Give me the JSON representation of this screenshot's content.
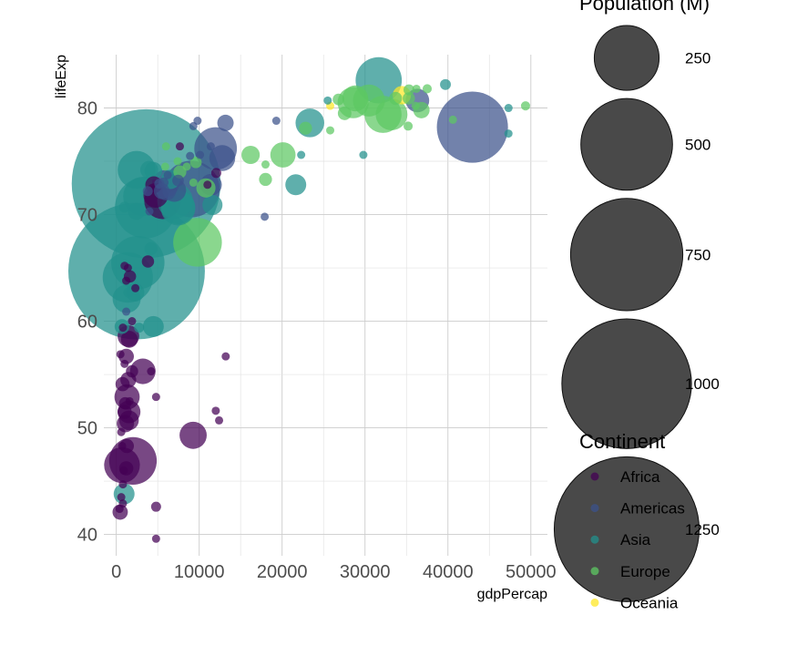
{
  "chart_data": {
    "type": "scatter",
    "xlabel": "gdpPercap",
    "ylabel": "lifeExp",
    "xlim": [
      -1500,
      52000
    ],
    "ylim": [
      38,
      85
    ],
    "x_ticks": [
      0,
      10000,
      20000,
      30000,
      40000,
      50000
    ],
    "y_ticks": [
      40,
      50,
      60,
      70,
      80
    ],
    "grid": true,
    "size_legend": {
      "title": "Population (M)",
      "entries": [
        250,
        500,
        750,
        1000,
        1250
      ]
    },
    "color_legend": {
      "title": "Continent",
      "entries": [
        {
          "name": "Africa",
          "color": "#440154"
        },
        {
          "name": "Americas",
          "color": "#3b528b"
        },
        {
          "name": "Asia",
          "color": "#21908c"
        },
        {
          "name": "Europe",
          "color": "#5dc863"
        },
        {
          "name": "Oceania",
          "color": "#fde725"
        }
      ]
    },
    "points": [
      {
        "x": 3600,
        "y": 72.9,
        "pop": 1318,
        "continent": "Asia"
      },
      {
        "x": 2450,
        "y": 64.7,
        "pop": 1110,
        "continent": "Asia"
      },
      {
        "x": 42950,
        "y": 78.2,
        "pop": 301,
        "continent": "Americas"
      },
      {
        "x": 3540,
        "y": 70.65,
        "pop": 224,
        "continent": "Asia"
      },
      {
        "x": 9060,
        "y": 72.4,
        "pop": 190,
        "continent": "Americas"
      },
      {
        "x": 2600,
        "y": 65.5,
        "pop": 169,
        "continent": "Asia"
      },
      {
        "x": 1390,
        "y": 64.1,
        "pop": 150,
        "continent": "Asia"
      },
      {
        "x": 2010,
        "y": 46.9,
        "pop": 135,
        "continent": "Africa"
      },
      {
        "x": 31650,
        "y": 82.6,
        "pop": 127,
        "continent": "Asia"
      },
      {
        "x": 11980,
        "y": 76.2,
        "pop": 108,
        "continent": "Americas"
      },
      {
        "x": 9800,
        "y": 67.4,
        "pop": 141,
        "continent": "Europe"
      },
      {
        "x": 3190,
        "y": 71.7,
        "pop": 91,
        "continent": "Asia"
      },
      {
        "x": 2450,
        "y": 74.2,
        "pop": 85,
        "continent": "Asia"
      },
      {
        "x": 690,
        "y": 46.5,
        "pop": 76,
        "continent": "Africa"
      },
      {
        "x": 32170,
        "y": 79.4,
        "pop": 82,
        "continent": "Europe"
      },
      {
        "x": 7092,
        "y": 71.3,
        "pop": 76,
        "continent": "Asia"
      },
      {
        "x": 5581,
        "y": 71.3,
        "pop": 80,
        "continent": "Africa"
      },
      {
        "x": 7458,
        "y": 70.6,
        "pop": 71,
        "continent": "Asia"
      },
      {
        "x": 7458,
        "y": 70.7,
        "pop": 69,
        "continent": "Asia"
      },
      {
        "x": 30470,
        "y": 80.7,
        "pop": 61,
        "continent": "Europe"
      },
      {
        "x": 33200,
        "y": 79.4,
        "pop": 60,
        "continent": "Europe"
      },
      {
        "x": 28570,
        "y": 80.5,
        "pop": 58,
        "continent": "Europe"
      },
      {
        "x": 1250,
        "y": 62.1,
        "pop": 47,
        "continent": "Asia"
      },
      {
        "x": 9270,
        "y": 49.3,
        "pop": 44,
        "continent": "Africa"
      },
      {
        "x": 28820,
        "y": 80.9,
        "pop": 40,
        "continent": "Europe"
      },
      {
        "x": 23350,
        "y": 78.6,
        "pop": 49,
        "continent": "Asia"
      },
      {
        "x": 5940,
        "y": 72.9,
        "pop": 44,
        "continent": "Americas"
      },
      {
        "x": 12780,
        "y": 75.3,
        "pop": 40,
        "continent": "Americas"
      },
      {
        "x": 3200,
        "y": 55.3,
        "pop": 39,
        "continent": "Africa"
      },
      {
        "x": 1300,
        "y": 52.9,
        "pop": 38,
        "continent": "Africa"
      },
      {
        "x": 20100,
        "y": 75.6,
        "pop": 38,
        "continent": "Europe"
      },
      {
        "x": 7000,
        "y": 72.3,
        "pop": 33,
        "continent": "Americas"
      },
      {
        "x": 36320,
        "y": 80.7,
        "pop": 33,
        "continent": "Americas"
      },
      {
        "x": 4760,
        "y": 71.8,
        "pop": 36,
        "continent": "Africa"
      },
      {
        "x": 11600,
        "y": 70.9,
        "pop": 24,
        "continent": "Asia"
      },
      {
        "x": 1540,
        "y": 51.5,
        "pop": 31,
        "continent": "Africa"
      },
      {
        "x": 1463,
        "y": 58.6,
        "pop": 28,
        "continent": "Africa"
      },
      {
        "x": 11420,
        "y": 72.8,
        "pop": 28,
        "continent": "Americas"
      },
      {
        "x": 4470,
        "y": 59.5,
        "pop": 26,
        "continent": "Asia"
      },
      {
        "x": 944,
        "y": 43.8,
        "pop": 26,
        "continent": "Asia"
      },
      {
        "x": 1530,
        "y": 50.7,
        "pop": 23,
        "continent": "Africa"
      },
      {
        "x": 34440,
        "y": 81.2,
        "pop": 20,
        "continent": "Oceania"
      },
      {
        "x": 6550,
        "y": 73.3,
        "pop": 22,
        "continent": "Asia"
      },
      {
        "x": 21650,
        "y": 72.8,
        "pop": 26,
        "continent": "Asia"
      },
      {
        "x": 2280,
        "y": 62.7,
        "pop": 20,
        "continent": "Asia"
      },
      {
        "x": 10810,
        "y": 72.5,
        "pop": 22,
        "continent": "Europe"
      },
      {
        "x": 3970,
        "y": 74.2,
        "pop": 19,
        "continent": "Asia"
      },
      {
        "x": 4470,
        "y": 74.1,
        "pop": 19,
        "continent": "Asia"
      },
      {
        "x": 6020,
        "y": 72.3,
        "pop": 25,
        "continent": "Americas"
      },
      {
        "x": 1570,
        "y": 58.3,
        "pop": 17,
        "continent": "Africa"
      },
      {
        "x": 4520,
        "y": 72.8,
        "pop": 17,
        "continent": "Africa"
      },
      {
        "x": 2430,
        "y": 70.3,
        "pop": 17,
        "continent": "Asia"
      },
      {
        "x": 36800,
        "y": 79.8,
        "pop": 16,
        "continent": "Europe"
      },
      {
        "x": 13170,
        "y": 78.6,
        "pop": 16,
        "continent": "Americas"
      },
      {
        "x": 1200,
        "y": 56.7,
        "pop": 14,
        "continent": "Africa"
      },
      {
        "x": 470,
        "y": 42.1,
        "pop": 14,
        "continent": "Africa"
      },
      {
        "x": 1100,
        "y": 50.4,
        "pop": 18,
        "continent": "Africa"
      },
      {
        "x": 5480,
        "y": 72.2,
        "pop": 15,
        "continent": "Americas"
      },
      {
        "x": 1450,
        "y": 54.5,
        "pop": 15,
        "continent": "Africa"
      },
      {
        "x": 27540,
        "y": 79.5,
        "pop": 11,
        "continent": "Europe"
      },
      {
        "x": 690,
        "y": 59.5,
        "pop": 13,
        "continent": "Asia"
      },
      {
        "x": 16200,
        "y": 75.6,
        "pop": 20,
        "continent": "Europe"
      },
      {
        "x": 18000,
        "y": 73.3,
        "pop": 10,
        "continent": "Europe"
      },
      {
        "x": 33690,
        "y": 80.9,
        "pop": 10,
        "continent": "Europe"
      },
      {
        "x": 1000,
        "y": 51.5,
        "pop": 12,
        "continent": "Africa"
      },
      {
        "x": 1650,
        "y": 64.2,
        "pop": 9,
        "continent": "Africa"
      },
      {
        "x": 7670,
        "y": 74.0,
        "pop": 10,
        "continent": "Europe"
      },
      {
        "x": 22830,
        "y": 78.1,
        "pop": 10,
        "continent": "Europe"
      },
      {
        "x": 35280,
        "y": 80.9,
        "pop": 9,
        "continent": "Europe"
      },
      {
        "x": 4170,
        "y": 66.8,
        "pop": 10,
        "continent": "Asia"
      },
      {
        "x": 1270,
        "y": 48.3,
        "pop": 12,
        "continent": "Africa"
      },
      {
        "x": 760,
        "y": 54.1,
        "pop": 12,
        "continent": "Africa"
      },
      {
        "x": 3820,
        "y": 65.6,
        "pop": 9,
        "continent": "Africa"
      },
      {
        "x": 1200,
        "y": 46.2,
        "pop": 12,
        "continent": "Africa"
      },
      {
        "x": 1070,
        "y": 52.3,
        "pop": 9,
        "continent": "Africa"
      },
      {
        "x": 3800,
        "y": 72.2,
        "pop": 6,
        "continent": "Americas"
      },
      {
        "x": 7450,
        "y": 73.2,
        "pop": 8,
        "continent": "Americas"
      },
      {
        "x": 26800,
        "y": 80.8,
        "pop": 8,
        "continent": "Europe"
      },
      {
        "x": 9600,
        "y": 74.9,
        "pop": 8,
        "continent": "Europe"
      },
      {
        "x": 1900,
        "y": 55.3,
        "pop": 9,
        "continent": "Africa"
      },
      {
        "x": 1000,
        "y": 70.7,
        "pop": 7,
        "continent": "Asia"
      },
      {
        "x": 39700,
        "y": 82.2,
        "pop": 7,
        "continent": "Asia"
      },
      {
        "x": 35300,
        "y": 81.7,
        "pop": 7,
        "continent": "Europe"
      },
      {
        "x": 1450,
        "y": 62.7,
        "pop": 6,
        "continent": "Asia"
      },
      {
        "x": 12060,
        "y": 73.9,
        "pop": 6,
        "continent": "Africa"
      },
      {
        "x": 47310,
        "y": 80.0,
        "pop": 4,
        "continent": "Asia"
      },
      {
        "x": 5700,
        "y": 73.0,
        "pop": 6,
        "continent": "Americas"
      },
      {
        "x": 5190,
        "y": 72.9,
        "pop": 6,
        "continent": "Americas"
      },
      {
        "x": 37500,
        "y": 81.8,
        "pop": 5,
        "continent": "Europe"
      },
      {
        "x": 35200,
        "y": 78.3,
        "pop": 5,
        "continent": "Europe"
      },
      {
        "x": 25800,
        "y": 80.2,
        "pop": 4,
        "continent": "Oceania"
      },
      {
        "x": 49360,
        "y": 80.2,
        "pop": 5,
        "continent": "Europe"
      },
      {
        "x": 4800,
        "y": 42.6,
        "pop": 6,
        "continent": "Africa"
      },
      {
        "x": 2750,
        "y": 59.4,
        "pop": 6,
        "continent": "Asia"
      },
      {
        "x": 13200,
        "y": 56.7,
        "pop": 2,
        "continent": "Africa"
      },
      {
        "x": 12400,
        "y": 50.7,
        "pop": 2,
        "continent": "Africa"
      },
      {
        "x": 12000,
        "y": 51.6,
        "pop": 2,
        "continent": "Africa"
      },
      {
        "x": 4200,
        "y": 55.3,
        "pop": 3,
        "continent": "Africa"
      },
      {
        "x": 4800,
        "y": 52.9,
        "pop": 4,
        "continent": "Africa"
      },
      {
        "x": 4800,
        "y": 39.6,
        "pop": 2,
        "continent": "Africa"
      },
      {
        "x": 400,
        "y": 42.4,
        "pop": 4,
        "continent": "Africa"
      },
      {
        "x": 600,
        "y": 43.5,
        "pop": 4,
        "continent": "Africa"
      },
      {
        "x": 800,
        "y": 44.7,
        "pop": 3,
        "continent": "Africa"
      },
      {
        "x": 900,
        "y": 46.0,
        "pop": 3,
        "continent": "Africa"
      },
      {
        "x": 700,
        "y": 48.3,
        "pop": 2,
        "continent": "Africa"
      },
      {
        "x": 600,
        "y": 49.6,
        "pop": 3,
        "continent": "Africa"
      },
      {
        "x": 1600,
        "y": 52.5,
        "pop": 4,
        "continent": "Africa"
      },
      {
        "x": 500,
        "y": 56.9,
        "pop": 4,
        "continent": "Africa"
      },
      {
        "x": 1000,
        "y": 56.0,
        "pop": 2,
        "continent": "Africa"
      },
      {
        "x": 1900,
        "y": 60.0,
        "pop": 2,
        "continent": "Africa"
      },
      {
        "x": 800,
        "y": 59.4,
        "pop": 2,
        "continent": "Africa"
      },
      {
        "x": 1000,
        "y": 65.2,
        "pop": 2,
        "continent": "Africa"
      },
      {
        "x": 1200,
        "y": 63.8,
        "pop": 2,
        "continent": "Africa"
      },
      {
        "x": 2300,
        "y": 63.1,
        "pop": 2,
        "continent": "Africa"
      },
      {
        "x": 7670,
        "y": 76.4,
        "pop": 2,
        "continent": "Africa"
      },
      {
        "x": 11000,
        "y": 72.8,
        "pop": 2,
        "continent": "Africa"
      },
      {
        "x": 17900,
        "y": 69.8,
        "pop": 1,
        "continent": "Americas"
      },
      {
        "x": 19300,
        "y": 78.8,
        "pop": 1,
        "continent": "Americas"
      },
      {
        "x": 9300,
        "y": 78.3,
        "pop": 4,
        "continent": "Americas"
      },
      {
        "x": 9800,
        "y": 78.8,
        "pop": 2,
        "continent": "Americas"
      },
      {
        "x": 10100,
        "y": 75.6,
        "pop": 2,
        "continent": "Americas"
      },
      {
        "x": 11400,
        "y": 76.4,
        "pop": 2,
        "continent": "Americas"
      },
      {
        "x": 4000,
        "y": 70.3,
        "pop": 3,
        "continent": "Americas"
      },
      {
        "x": 6200,
        "y": 73.7,
        "pop": 3,
        "continent": "Americas"
      },
      {
        "x": 8900,
        "y": 75.5,
        "pop": 3,
        "continent": "Americas"
      },
      {
        "x": 1200,
        "y": 60.9,
        "pop": 1,
        "continent": "Americas"
      },
      {
        "x": 25500,
        "y": 80.7,
        "pop": 2,
        "continent": "Asia"
      },
      {
        "x": 22300,
        "y": 75.6,
        "pop": 2,
        "continent": "Asia"
      },
      {
        "x": 29800,
        "y": 75.6,
        "pop": 1,
        "continent": "Asia"
      },
      {
        "x": 47300,
        "y": 77.6,
        "pop": 1,
        "continent": "Asia"
      },
      {
        "x": 18000,
        "y": 74.7,
        "pop": 2,
        "continent": "Europe"
      },
      {
        "x": 25800,
        "y": 77.9,
        "pop": 1,
        "continent": "Europe"
      },
      {
        "x": 36200,
        "y": 81.8,
        "pop": 1,
        "continent": "Europe"
      },
      {
        "x": 40600,
        "y": 78.9,
        "pop": 2,
        "continent": "Europe"
      },
      {
        "x": 6000,
        "y": 76.4,
        "pop": 2,
        "continent": "Europe"
      },
      {
        "x": 5900,
        "y": 74.5,
        "pop": 2,
        "continent": "Europe"
      },
      {
        "x": 7400,
        "y": 75.0,
        "pop": 2,
        "continent": "Europe"
      },
      {
        "x": 8500,
        "y": 74.5,
        "pop": 3,
        "continent": "Europe"
      },
      {
        "x": 9300,
        "y": 73.0,
        "pop": 2,
        "continent": "Europe"
      },
      {
        "x": 36100,
        "y": 80.2,
        "pop": 2,
        "continent": "Europe"
      },
      {
        "x": 1400,
        "y": 65.0,
        "pop": 3,
        "continent": "Africa"
      },
      {
        "x": 800,
        "y": 42.9,
        "pop": 2,
        "continent": "Africa"
      }
    ]
  }
}
